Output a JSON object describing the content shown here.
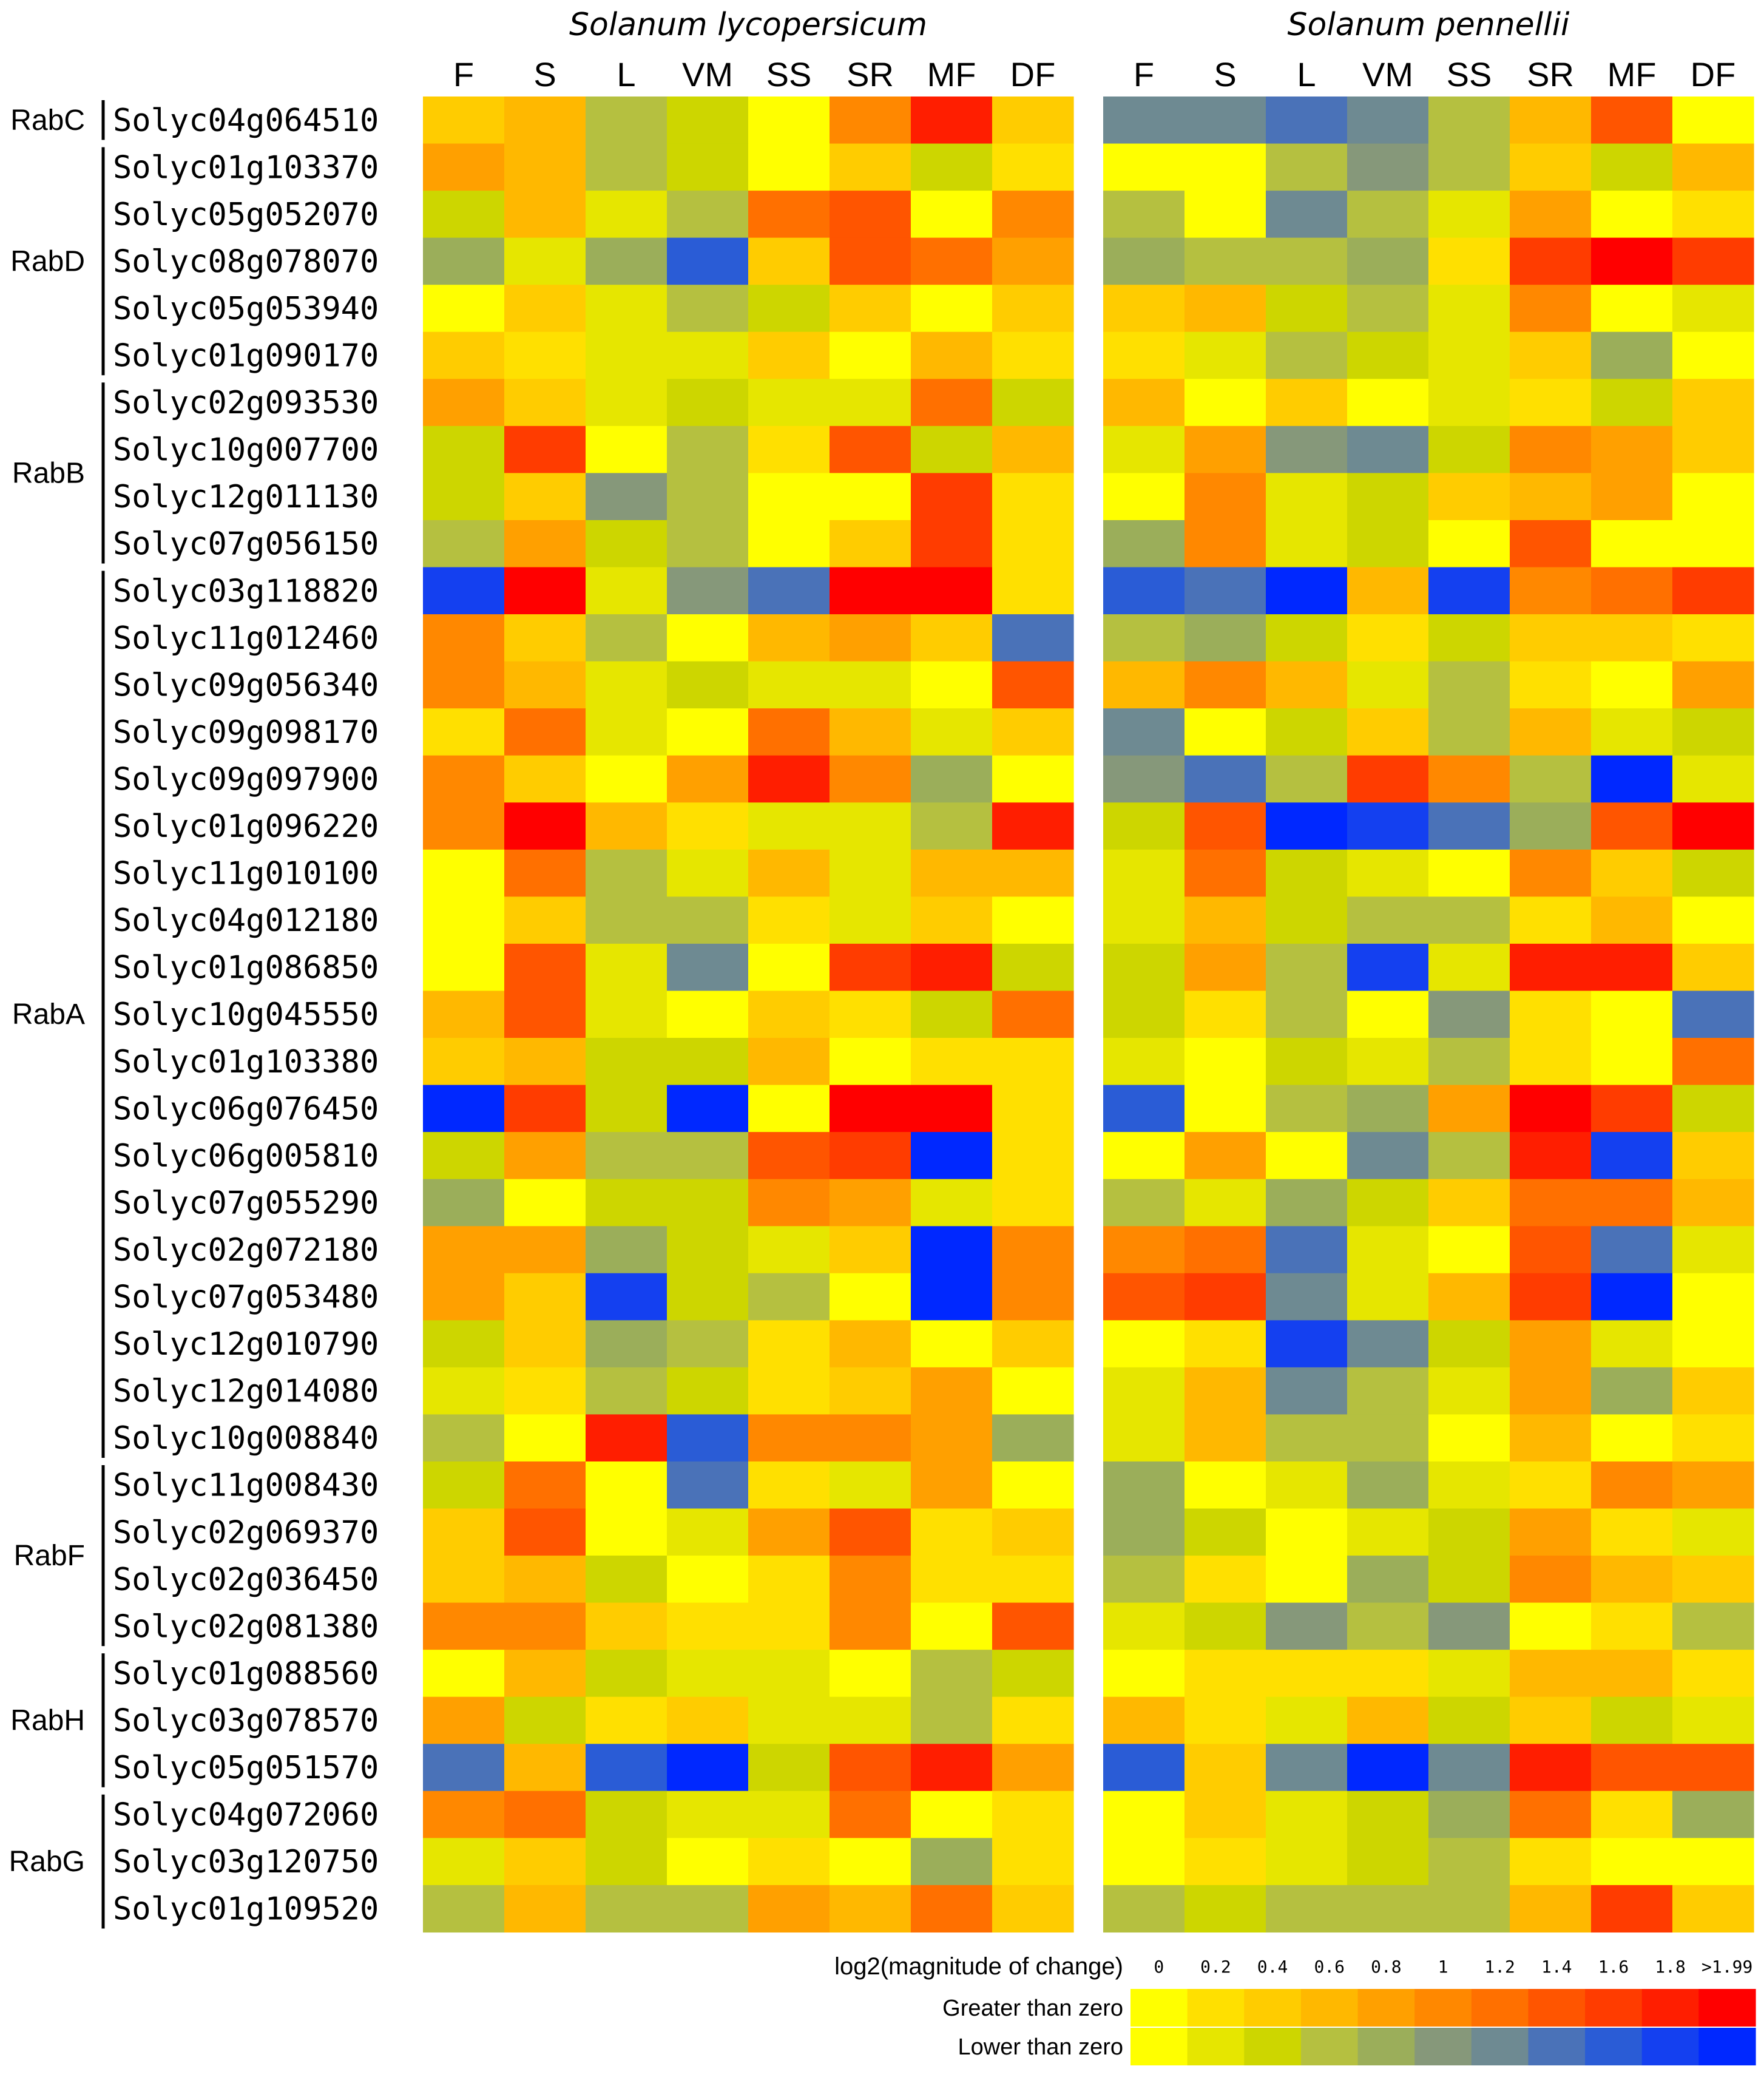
{
  "chart_data": {
    "type": "heatmap",
    "panels": [
      {
        "title": "Solanum lycopersicum",
        "columns": [
          "F",
          "S",
          "L",
          "VM",
          "SS",
          "SR",
          "MF",
          "DF"
        ]
      },
      {
        "title": "Solanum pennellii",
        "columns": [
          "F",
          "S",
          "L",
          "VM",
          "SS",
          "SR",
          "MF",
          "DF"
        ]
      }
    ],
    "rows": [
      "Solyc04g064510",
      "Solyc01g103370",
      "Solyc05g052070",
      "Solyc08g078070",
      "Solyc05g053940",
      "Solyc01g090170",
      "Solyc02g093530",
      "Solyc10g007700",
      "Solyc12g011130",
      "Solyc07g056150",
      "Solyc03g118820",
      "Solyc11g012460",
      "Solyc09g056340",
      "Solyc09g098170",
      "Solyc09g097900",
      "Solyc01g096220",
      "Solyc11g010100",
      "Solyc04g012180",
      "Solyc01g086850",
      "Solyc10g045550",
      "Solyc01g103380",
      "Solyc06g076450",
      "Solyc06g005810",
      "Solyc07g055290",
      "Solyc02g072180",
      "Solyc07g053480",
      "Solyc12g010790",
      "Solyc12g014080",
      "Solyc10g008840",
      "Solyc11g008430",
      "Solyc02g069370",
      "Solyc02g036450",
      "Solyc02g081380",
      "Solyc01g088560",
      "Solyc03g078570",
      "Solyc05g051570",
      "Solyc04g072060",
      "Solyc03g120750",
      "Solyc01g109520"
    ],
    "groups": [
      {
        "label": "RabC",
        "start": 0,
        "end": 0
      },
      {
        "label": "RabD",
        "start": 1,
        "end": 5
      },
      {
        "label": "RabB",
        "start": 6,
        "end": 9
      },
      {
        "label": "RabA",
        "start": 10,
        "end": 28
      },
      {
        "label": "RabF",
        "start": 29,
        "end": 32
      },
      {
        "label": "RabH",
        "start": 33,
        "end": 35
      },
      {
        "label": "RabG",
        "start": 36,
        "end": 38
      }
    ],
    "values": [
      [
        [
          0.4,
          0.6,
          -0.6,
          -0.4,
          0.0,
          1.0,
          1.8,
          0.4
        ],
        [
          -1.2,
          -1.2,
          -1.4,
          -1.2,
          -0.6,
          0.6,
          1.4,
          0.0
        ]
      ],
      [
        [
          0.8,
          0.6,
          -0.6,
          -0.4,
          0.0,
          0.4,
          -0.4,
          0.2
        ],
        [
          0.0,
          0.0,
          -0.6,
          -1.0,
          -0.6,
          0.4,
          -0.4,
          0.6
        ]
      ],
      [
        [
          -0.4,
          0.6,
          -0.2,
          -0.6,
          1.2,
          1.4,
          0.0,
          1.0
        ],
        [
          -0.6,
          0.0,
          -1.2,
          -0.6,
          -0.2,
          0.8,
          0.0,
          0.2
        ]
      ],
      [
        [
          -0.8,
          -0.2,
          -0.8,
          -1.6,
          0.4,
          1.4,
          1.2,
          0.8
        ],
        [
          -0.8,
          -0.6,
          -0.6,
          -0.8,
          0.2,
          1.6,
          1.99,
          1.6
        ]
      ],
      [
        [
          0.0,
          0.4,
          -0.2,
          -0.6,
          -0.4,
          0.4,
          0.0,
          0.4
        ],
        [
          0.4,
          0.6,
          -0.4,
          -0.6,
          -0.2,
          1.0,
          0.0,
          -0.2
        ]
      ],
      [
        [
          0.4,
          0.2,
          -0.2,
          -0.2,
          0.4,
          0.0,
          0.6,
          0.2
        ],
        [
          0.2,
          -0.2,
          -0.6,
          -0.4,
          -0.2,
          0.4,
          -0.8,
          0.0
        ]
      ],
      [
        [
          0.8,
          0.4,
          -0.2,
          -0.4,
          -0.2,
          -0.2,
          1.2,
          -0.4
        ],
        [
          0.6,
          0.0,
          0.4,
          0.0,
          -0.2,
          0.2,
          -0.4,
          0.4
        ]
      ],
      [
        [
          -0.4,
          1.6,
          0.0,
          -0.6,
          0.2,
          1.4,
          -0.4,
          0.6
        ],
        [
          -0.2,
          0.8,
          -1.0,
          -1.2,
          -0.4,
          1.0,
          0.8,
          0.4
        ]
      ],
      [
        [
          -0.4,
          0.4,
          -1.0,
          -0.6,
          0.0,
          0.0,
          1.6,
          0.2
        ],
        [
          0.0,
          1.0,
          -0.2,
          -0.4,
          0.4,
          0.6,
          0.8,
          0.0
        ]
      ],
      [
        [
          -0.6,
          0.8,
          -0.4,
          -0.6,
          0.0,
          0.4,
          1.6,
          0.2
        ],
        [
          -0.8,
          1.0,
          -0.2,
          -0.4,
          0.0,
          1.4,
          0.0,
          0.0
        ]
      ],
      [
        [
          -1.8,
          1.99,
          -0.2,
          -1.0,
          -1.4,
          1.99,
          1.99,
          0.2
        ],
        [
          -1.6,
          -1.4,
          -1.99,
          0.6,
          -1.8,
          1.0,
          1.2,
          1.6
        ]
      ],
      [
        [
          1.0,
          0.4,
          -0.6,
          0.0,
          0.6,
          0.8,
          0.4,
          -1.4
        ],
        [
          -0.6,
          -0.8,
          -0.4,
          0.2,
          -0.4,
          0.4,
          0.4,
          0.2
        ]
      ],
      [
        [
          1.0,
          0.6,
          -0.2,
          -0.4,
          -0.2,
          -0.2,
          0.0,
          1.4
        ],
        [
          0.6,
          1.0,
          0.6,
          -0.2,
          -0.6,
          0.2,
          0.0,
          0.8
        ]
      ],
      [
        [
          0.2,
          1.2,
          -0.2,
          0.0,
          1.2,
          0.6,
          -0.2,
          0.4
        ],
        [
          -1.2,
          0.0,
          -0.4,
          0.4,
          -0.6,
          0.6,
          -0.2,
          -0.4
        ]
      ],
      [
        [
          1.0,
          0.4,
          0.0,
          0.8,
          1.8,
          1.0,
          -0.8,
          0.0
        ],
        [
          -1.0,
          -1.4,
          -0.6,
          1.6,
          1.0,
          -0.6,
          -1.99,
          -0.2
        ]
      ],
      [
        [
          1.0,
          1.99,
          0.6,
          0.2,
          -0.2,
          -0.2,
          -0.6,
          1.8
        ],
        [
          -0.4,
          1.4,
          -1.99,
          -1.8,
          -1.4,
          -0.8,
          1.4,
          1.99
        ]
      ],
      [
        [
          0.0,
          1.2,
          -0.6,
          -0.2,
          0.6,
          -0.2,
          0.6,
          0.6
        ],
        [
          -0.2,
          1.2,
          -0.4,
          -0.2,
          0.0,
          1.0,
          0.4,
          -0.4
        ]
      ],
      [
        [
          0.0,
          0.4,
          -0.6,
          -0.6,
          0.2,
          -0.2,
          0.4,
          0.0
        ],
        [
          -0.2,
          0.6,
          -0.4,
          -0.6,
          -0.6,
          0.2,
          0.6,
          0.0
        ]
      ],
      [
        [
          0.0,
          1.4,
          -0.2,
          -1.2,
          0.0,
          1.6,
          1.8,
          -0.4
        ],
        [
          -0.4,
          0.8,
          -0.6,
          -1.8,
          -0.2,
          1.8,
          1.8,
          0.4
        ]
      ],
      [
        [
          0.6,
          1.4,
          -0.2,
          0.0,
          0.4,
          0.2,
          -0.4,
          1.2
        ],
        [
          -0.4,
          0.2,
          -0.6,
          0.0,
          -1.0,
          0.2,
          0.0,
          -1.4
        ]
      ],
      [
        [
          0.4,
          0.6,
          -0.4,
          -0.4,
          0.6,
          0.0,
          0.2,
          0.2
        ],
        [
          -0.2,
          0.0,
          -0.4,
          -0.2,
          -0.6,
          0.2,
          0.0,
          1.2
        ]
      ],
      [
        [
          -1.99,
          1.6,
          -0.4,
          -1.99,
          0.0,
          1.99,
          1.99,
          0.2
        ],
        [
          -1.6,
          0.0,
          -0.6,
          -0.8,
          0.8,
          1.99,
          1.6,
          -0.4
        ]
      ],
      [
        [
          -0.4,
          0.8,
          -0.6,
          -0.6,
          1.4,
          1.6,
          -1.99,
          0.2
        ],
        [
          0.0,
          0.8,
          0.0,
          -1.2,
          -0.6,
          1.8,
          -1.8,
          0.4
        ]
      ],
      [
        [
          -0.8,
          0.0,
          -0.4,
          -0.4,
          1.0,
          0.8,
          -0.2,
          0.2
        ],
        [
          -0.6,
          -0.2,
          -0.8,
          -0.4,
          0.4,
          1.2,
          1.2,
          0.6
        ]
      ],
      [
        [
          0.8,
          0.8,
          -0.8,
          -0.4,
          -0.2,
          0.4,
          -1.99,
          1.0
        ],
        [
          1.0,
          1.2,
          -1.4,
          -0.2,
          0.0,
          1.4,
          -1.4,
          -0.2
        ]
      ],
      [
        [
          0.8,
          0.4,
          -1.8,
          -0.4,
          -0.6,
          0.0,
          -1.99,
          1.0
        ],
        [
          1.4,
          1.6,
          -1.2,
          -0.2,
          0.6,
          1.6,
          -1.99,
          0.0
        ]
      ],
      [
        [
          -0.4,
          0.4,
          -0.8,
          -0.6,
          0.2,
          0.6,
          0.0,
          0.4
        ],
        [
          0.0,
          0.2,
          -1.8,
          -1.2,
          -0.4,
          0.8,
          -0.2,
          0.0
        ]
      ],
      [
        [
          -0.2,
          0.2,
          -0.6,
          -0.4,
          0.2,
          0.4,
          0.8,
          0.0
        ],
        [
          -0.2,
          0.6,
          -1.2,
          -0.6,
          -0.2,
          0.8,
          -0.8,
          0.4
        ]
      ],
      [
        [
          -0.6,
          0.0,
          1.8,
          -1.6,
          1.0,
          1.0,
          0.8,
          -0.8
        ],
        [
          -0.2,
          0.6,
          -0.6,
          -0.6,
          0.0,
          0.6,
          0.0,
          0.2
        ]
      ],
      [
        [
          -0.4,
          1.2,
          0.0,
          -1.4,
          0.2,
          -0.2,
          0.8,
          0.0
        ],
        [
          -0.8,
          0.0,
          -0.2,
          -0.8,
          -0.2,
          0.2,
          1.0,
          0.8
        ]
      ],
      [
        [
          0.4,
          1.4,
          0.0,
          -0.2,
          0.8,
          1.4,
          0.2,
          0.4
        ],
        [
          -0.8,
          -0.4,
          0.0,
          -0.2,
          -0.4,
          0.8,
          0.2,
          -0.2
        ]
      ],
      [
        [
          0.4,
          0.6,
          -0.4,
          0.0,
          0.2,
          1.0,
          0.2,
          0.2
        ],
        [
          -0.6,
          0.2,
          0.0,
          -0.8,
          -0.4,
          1.0,
          0.6,
          0.4
        ]
      ],
      [
        [
          1.0,
          1.0,
          0.4,
          0.2,
          0.2,
          1.0,
          0.0,
          1.4
        ],
        [
          -0.2,
          -0.4,
          -1.0,
          -0.6,
          -1.0,
          0.0,
          0.2,
          -0.6
        ]
      ],
      [
        [
          0.0,
          0.6,
          -0.4,
          -0.2,
          -0.2,
          0.0,
          -0.6,
          -0.4
        ],
        [
          0.0,
          0.2,
          0.2,
          0.2,
          -0.2,
          0.6,
          0.6,
          0.2
        ]
      ],
      [
        [
          0.8,
          -0.4,
          0.2,
          0.4,
          -0.2,
          -0.2,
          -0.6,
          0.2
        ],
        [
          0.6,
          0.2,
          -0.2,
          0.6,
          -0.4,
          0.4,
          -0.4,
          -0.2
        ]
      ],
      [
        [
          -1.4,
          0.6,
          -1.6,
          -1.99,
          -0.4,
          1.4,
          1.8,
          0.8
        ],
        [
          -1.6,
          0.4,
          -1.2,
          -1.99,
          -1.2,
          1.8,
          1.4,
          1.4
        ]
      ],
      [
        [
          1.0,
          1.2,
          -0.4,
          -0.2,
          -0.2,
          1.2,
          0.0,
          0.2
        ],
        [
          0.0,
          0.4,
          -0.2,
          -0.4,
          -0.8,
          1.2,
          0.2,
          -0.8
        ]
      ],
      [
        [
          -0.2,
          0.4,
          -0.4,
          0.0,
          0.2,
          0.0,
          -0.8,
          0.2
        ],
        [
          0.0,
          0.2,
          -0.2,
          -0.4,
          -0.6,
          0.2,
          0.0,
          0.0
        ]
      ],
      [
        [
          -0.6,
          0.6,
          -0.6,
          -0.6,
          0.8,
          0.6,
          1.2,
          0.4
        ],
        [
          -0.6,
          -0.4,
          -0.6,
          -0.6,
          -0.6,
          0.6,
          1.6,
          0.4
        ]
      ]
    ],
    "legend": {
      "title": "log2(magnitude of change)",
      "ticks": [
        "0",
        "0.2",
        "0.4",
        "0.6",
        "0.8",
        "1",
        "1.2",
        "1.4",
        "1.6",
        "1.8",
        ">1.99"
      ],
      "rows": [
        "Greater than zero",
        "Lower than zero"
      ],
      "positive_colors": [
        "#FFFF00",
        "#FFE000",
        "#FFCC00",
        "#FFB800",
        "#FFA000",
        "#FF8800",
        "#FF7000",
        "#FF5500",
        "#FF3C00",
        "#FF1E00",
        "#FF0000"
      ],
      "negative_colors": [
        "#FFFF00",
        "#E6E600",
        "#CDD600",
        "#B5C040",
        "#9BAE5A",
        "#86987A",
        "#6E8A92",
        "#4A72B8",
        "#2A5CD6",
        "#1440F0",
        "#0028FF"
      ]
    }
  }
}
